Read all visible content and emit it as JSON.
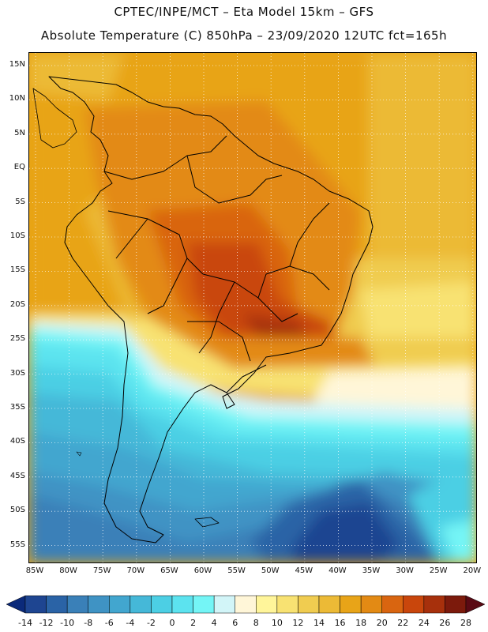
{
  "header": {
    "title_line1": "CPTEC/INPE/MCT –  Eta Model 15km – GFS",
    "title_line2": "Absolute Temperature (C) 850hPa – 23/09/2020 12UTC fct=165h"
  },
  "map": {
    "lat_labels": [
      "15N",
      "10N",
      "5N",
      "EQ",
      "5S",
      "10S",
      "15S",
      "20S",
      "25S",
      "30S",
      "35S",
      "40S",
      "45S",
      "50S",
      "55S"
    ],
    "lon_labels": [
      "85W",
      "80W",
      "75W",
      "70W",
      "65W",
      "60W",
      "55W",
      "50W",
      "45W",
      "40W",
      "35W",
      "30W",
      "25W",
      "20W"
    ]
  },
  "colorbar": {
    "labels": [
      "-14",
      "-12",
      "-10",
      "-8",
      "-6",
      "-4",
      "-2",
      "0",
      "2",
      "4",
      "6",
      "8",
      "10",
      "12",
      "14",
      "16",
      "18",
      "20",
      "22",
      "24",
      "26",
      "28"
    ],
    "colors": [
      "#0b2a7a",
      "#1e4591",
      "#2a63a6",
      "#3a80b8",
      "#3f93c4",
      "#42a6cf",
      "#45b8d8",
      "#4ccfe4",
      "#5ce3ef",
      "#74f5f6",
      "#d2f5f8",
      "#fff6d8",
      "#fff59a",
      "#f8e272",
      "#f0cc50",
      "#ecba36",
      "#e8a418",
      "#e38a14",
      "#d96510",
      "#c9460c",
      "#a7300c",
      "#7c1a0c",
      "#5a0a14"
    ]
  }
}
